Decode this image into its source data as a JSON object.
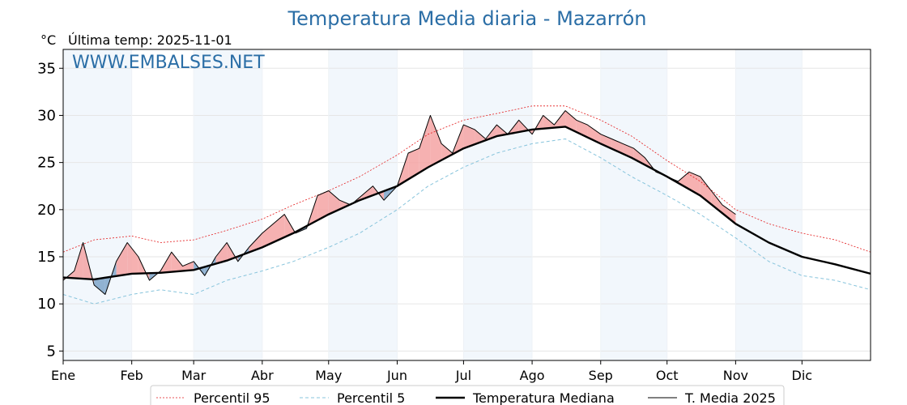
{
  "chart_data": {
    "type": "line",
    "title": "Temperatura Media diaria - Mazarrón",
    "unit_label": "°C",
    "last_temp_label": "Última temp: 2025-11-01",
    "watermark": "WWW.EMBALSES.NET",
    "ylim": [
      4,
      37
    ],
    "yticks": [
      5,
      10,
      15,
      20,
      25,
      30,
      35
    ],
    "xlim": [
      1,
      366
    ],
    "months": [
      {
        "label": "Ene",
        "day": 1
      },
      {
        "label": "Feb",
        "day": 32
      },
      {
        "label": "Mar",
        "day": 60
      },
      {
        "label": "Abr",
        "day": 91
      },
      {
        "label": "May",
        "day": 121
      },
      {
        "label": "Jun",
        "day": 152
      },
      {
        "label": "Jul",
        "day": 182
      },
      {
        "label": "Ago",
        "day": 213
      },
      {
        "label": "Sep",
        "day": 244
      },
      {
        "label": "Oct",
        "day": 274
      },
      {
        "label": "Nov",
        "day": 305
      },
      {
        "label": "Dic",
        "day": 335
      }
    ],
    "grid": true,
    "legend_position": "bottom",
    "series": [
      {
        "name": "Percentil 95",
        "color": "#e41a1c",
        "style": "dotted",
        "x": [
          1,
          15,
          32,
          45,
          60,
          75,
          91,
          105,
          121,
          135,
          152,
          166,
          182,
          197,
          213,
          228,
          244,
          258,
          274,
          289,
          305,
          320,
          335,
          350,
          366
        ],
        "y": [
          15.5,
          16.8,
          17.2,
          16.5,
          16.8,
          17.8,
          19.0,
          20.5,
          22.0,
          23.5,
          25.8,
          28.0,
          29.5,
          30.2,
          31.0,
          31.0,
          29.5,
          27.8,
          25.2,
          23.0,
          20.0,
          18.5,
          17.5,
          16.8,
          15.5
        ]
      },
      {
        "name": "Percentil 5",
        "color": "#87c4dc",
        "style": "dashed",
        "x": [
          1,
          15,
          32,
          45,
          60,
          75,
          91,
          105,
          121,
          135,
          152,
          166,
          182,
          197,
          213,
          228,
          244,
          258,
          274,
          289,
          305,
          320,
          335,
          350,
          366
        ],
        "y": [
          11.0,
          10.0,
          11.0,
          11.5,
          11.0,
          12.5,
          13.5,
          14.5,
          16.0,
          17.5,
          20.0,
          22.5,
          24.5,
          26.0,
          27.0,
          27.5,
          25.5,
          23.5,
          21.5,
          19.5,
          17.0,
          14.5,
          13.0,
          12.5,
          11.5
        ]
      },
      {
        "name": "Temperatura Mediana",
        "color": "#000000",
        "style": "solid-thick",
        "x": [
          1,
          15,
          32,
          45,
          60,
          75,
          91,
          105,
          121,
          135,
          152,
          166,
          182,
          197,
          213,
          228,
          244,
          258,
          274,
          289,
          305,
          320,
          335,
          350,
          366
        ],
        "y": [
          12.8,
          12.6,
          13.2,
          13.3,
          13.6,
          14.6,
          16.0,
          17.5,
          19.5,
          21.0,
          22.5,
          24.5,
          26.5,
          27.8,
          28.5,
          28.8,
          27.0,
          25.5,
          23.5,
          21.5,
          18.5,
          16.5,
          15.0,
          14.2,
          13.2
        ]
      },
      {
        "name": "T. Media 2025",
        "color": "#000000",
        "style": "solid",
        "x": [
          1,
          6,
          10,
          15,
          20,
          25,
          30,
          35,
          40,
          45,
          50,
          55,
          60,
          65,
          70,
          75,
          80,
          85,
          91,
          96,
          101,
          106,
          111,
          116,
          121,
          126,
          131,
          136,
          141,
          146,
          152,
          157,
          162,
          167,
          172,
          177,
          182,
          187,
          192,
          197,
          202,
          207,
          213,
          218,
          223,
          228,
          233,
          238,
          244,
          249,
          254,
          259,
          264,
          269,
          274,
          279,
          284,
          289,
          294,
          299,
          305
        ],
        "y": [
          12.5,
          13.5,
          16.5,
          12.0,
          11.0,
          14.5,
          16.5,
          15.0,
          12.5,
          13.5,
          15.5,
          14.0,
          14.5,
          13.0,
          15.0,
          16.5,
          14.5,
          16.0,
          17.5,
          18.5,
          19.5,
          17.5,
          18.0,
          21.5,
          22.0,
          21.0,
          20.5,
          21.5,
          22.5,
          21.0,
          22.5,
          26.0,
          26.5,
          30.0,
          27.0,
          26.0,
          29.0,
          28.5,
          27.5,
          29.0,
          28.0,
          29.5,
          28.0,
          30.0,
          29.0,
          30.5,
          29.5,
          29.0,
          28.0,
          27.5,
          27.0,
          26.5,
          25.5,
          24.0,
          23.5,
          23.0,
          24.0,
          23.5,
          22.0,
          20.5,
          19.5
        ]
      }
    ]
  }
}
